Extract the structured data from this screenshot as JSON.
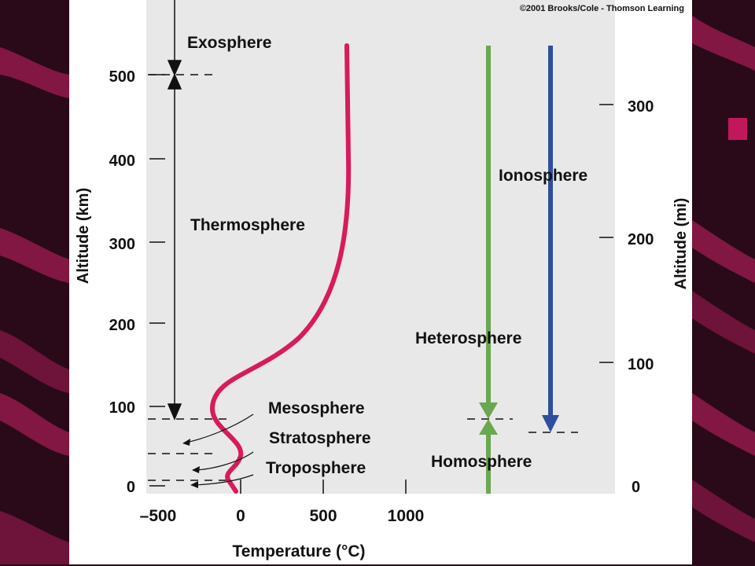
{
  "copyright": "©2001 Brooks/Cole - Thomson Learning",
  "axes": {
    "y_left_label": "Altitude (km)",
    "y_right_label": "Altitude (mi)",
    "x_label": "Temperature (°C)",
    "y_left_ticks": [
      "0",
      "100",
      "200",
      "300",
      "400",
      "500"
    ],
    "y_right_ticks": [
      "0",
      "100",
      "200",
      "300"
    ],
    "x_ticks": [
      "–500",
      "0",
      "500",
      "1000"
    ]
  },
  "layers": {
    "exosphere": "Exosphere",
    "thermosphere": "Thermosphere",
    "mesosphere": "Mesosphere",
    "stratosphere": "Stratosphere",
    "troposphere": "Troposphere"
  },
  "composition": {
    "heterosphere": "Heterosphere",
    "homosphere": "Homosphere",
    "ionosphere": "Ionosphere"
  },
  "colors": {
    "background_panel": "#e8e8e8",
    "temperature_curve": "#d81b5a",
    "homosphere_heterosphere_arrow": "#6aa84f",
    "ionosphere_arrow": "#2d4f9e",
    "slide_background": "#2a0a18",
    "decor_stripe": "#8c1848"
  }
}
